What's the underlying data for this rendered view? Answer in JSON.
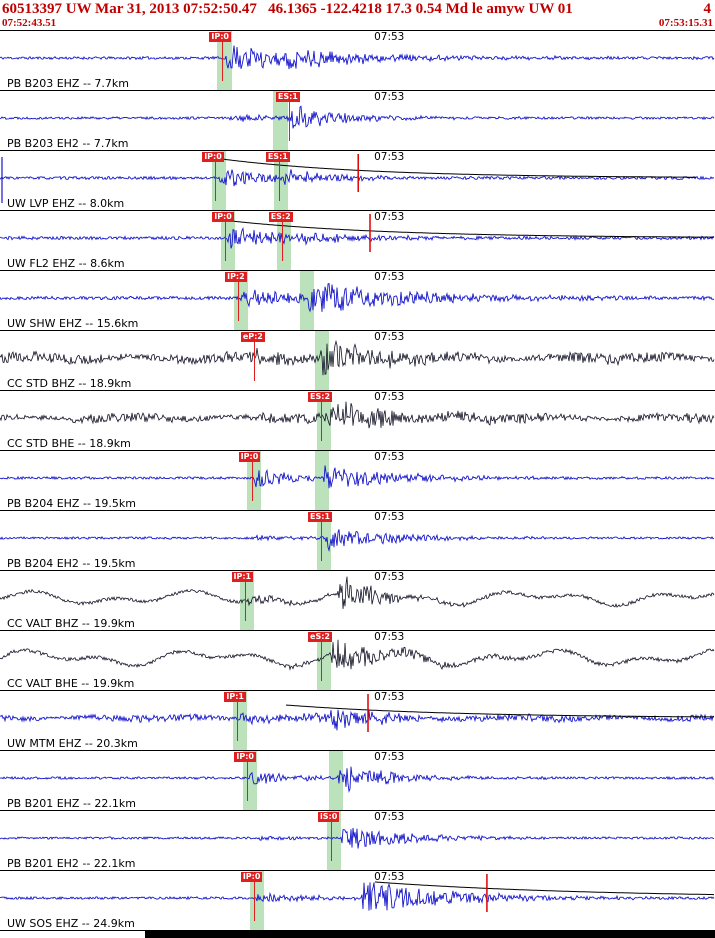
{
  "header": {
    "title": "60513397 UW Mar 31, 2013 07:52:50.47   46.1365 -122.4218 17.3 0.54 Md le amyw UW 01",
    "page": "4",
    "start_time": "07:52:43.51",
    "end_time": "07:53:15.31"
  },
  "time_tick": {
    "label": "07:53",
    "frac": 0.519
  },
  "colors": {
    "blue": "#1616cc",
    "dark": "#121226",
    "pick_red": "#e02020",
    "mark_red": "#dd0000",
    "band_green": "rgba(132,202,132,0.55)",
    "header_red": "#c00000",
    "coda_black": "#000000"
  },
  "traces": [
    {
      "label": "PB B203 EHZ -- 7.7km",
      "color": "blue",
      "picks": [
        {
          "label": "IP:0",
          "frac": 0.311
        }
      ],
      "bands": [
        {
          "frac": 0.304,
          "w": 15
        }
      ],
      "wave": {
        "seed": 11,
        "type": "hf",
        "noise": 1.3,
        "p_onset": 0.315,
        "p_amp": 14,
        "p_decay": 90,
        "s_onset": 0.4,
        "s_amp": 6,
        "s_decay": 120
      },
      "red_marks": [],
      "coda": null,
      "edge_spike": false
    },
    {
      "label": "PB B203 EH2 -- 7.7km",
      "color": "blue",
      "picks": [
        {
          "label": "ES:1",
          "frac": 0.404
        }
      ],
      "bands": [
        {
          "frac": 0.382,
          "w": 15
        }
      ],
      "wave": {
        "seed": 22,
        "type": "hf",
        "noise": 1.2,
        "p_onset": 0.32,
        "p_amp": 3.5,
        "p_decay": 70,
        "s_onset": 0.406,
        "s_amp": 12,
        "s_decay": 60
      },
      "red_marks": [],
      "coda": null,
      "edge_spike": false
    },
    {
      "label": "UW LVP EHZ -- 8.0km",
      "color": "blue",
      "picks": [
        {
          "label": "IP:0",
          "frac": 0.301
        },
        {
          "label": "ES:1",
          "frac": 0.39
        }
      ],
      "bands": [
        {
          "frac": 0.296,
          "w": 14
        },
        {
          "frac": 0.383,
          "w": 14
        }
      ],
      "wave": {
        "seed": 33,
        "type": "hf",
        "noise": 1.4,
        "p_onset": 0.305,
        "p_amp": 11,
        "p_decay": 45,
        "s_onset": 0.392,
        "s_amp": 7,
        "s_decay": 60
      },
      "red_marks": [
        0.501
      ],
      "coda": {
        "start": 0.31,
        "amp": 19,
        "tau": 150
      },
      "edge_spike": true
    },
    {
      "label": "UW FL2 EHZ -- 8.6km",
      "color": "blue",
      "picks": [
        {
          "label": "IP:0",
          "frac": 0.315
        },
        {
          "label": "ES:2",
          "frac": 0.394
        }
      ],
      "bands": [
        {
          "frac": 0.309,
          "w": 14
        },
        {
          "frac": 0.387,
          "w": 14
        }
      ],
      "wave": {
        "seed": 44,
        "type": "hf",
        "noise": 1.6,
        "p_onset": 0.318,
        "p_amp": 13,
        "p_decay": 45,
        "s_onset": 0.396,
        "s_amp": 6,
        "s_decay": 70
      },
      "red_marks": [
        0.5175
      ],
      "coda": {
        "start": 0.323,
        "amp": 17,
        "tau": 160
      },
      "edge_spike": false
    },
    {
      "label": "UW SHW EHZ -- 15.6km",
      "color": "blue",
      "picks": [
        {
          "label": "IP:2",
          "frac": 0.333
        }
      ],
      "bands": [
        {
          "frac": 0.327,
          "w": 14
        },
        {
          "frac": 0.419,
          "w": 14
        }
      ],
      "wave": {
        "seed": 55,
        "type": "hf",
        "noise": 1.6,
        "p_onset": 0.336,
        "p_amp": 9,
        "p_decay": 70,
        "s_onset": 0.428,
        "s_amp": 17,
        "s_decay": 110
      },
      "red_marks": [],
      "coda": null,
      "edge_spike": false
    },
    {
      "label": "CC STD BHZ -- 18.9km",
      "color": "dark",
      "picks": [
        {
          "label": "eP:2",
          "frac": 0.355
        }
      ],
      "bands": [
        {
          "frac": 0.441,
          "w": 14
        }
      ],
      "wave": {
        "seed": 66,
        "type": "mixed",
        "noise": 5.5,
        "p_onset": 0.357,
        "p_amp": 5,
        "p_decay": 60,
        "s_onset": 0.447,
        "s_amp": 18,
        "s_decay": 55
      },
      "red_marks": [],
      "coda": null,
      "edge_spike": false
    },
    {
      "label": "CC STD BHE -- 18.9km",
      "color": "dark",
      "picks": [
        {
          "label": "ES:2",
          "frac": 0.449
        }
      ],
      "bands": [
        {
          "frac": 0.443,
          "w": 14
        }
      ],
      "wave": {
        "seed": 77,
        "type": "mixed",
        "noise": 4.8,
        "p_onset": 0.36,
        "p_amp": 2,
        "p_decay": 80,
        "s_onset": 0.46,
        "s_amp": 15,
        "s_decay": 75
      },
      "red_marks": [],
      "coda": null,
      "edge_spike": false
    },
    {
      "label": "PB B204 EHZ -- 19.5km",
      "color": "blue",
      "picks": [
        {
          "label": "IP:0",
          "frac": 0.352
        }
      ],
      "bands": [
        {
          "frac": 0.346,
          "w": 14
        },
        {
          "frac": 0.441,
          "w": 14
        }
      ],
      "wave": {
        "seed": 88,
        "type": "hf",
        "noise": 1.2,
        "p_onset": 0.355,
        "p_amp": 11,
        "p_decay": 40,
        "s_onset": 0.452,
        "s_amp": 13,
        "s_decay": 75
      },
      "red_marks": [],
      "coda": null,
      "edge_spike": false
    },
    {
      "label": "PB B204 EH2 -- 19.5km",
      "color": "blue",
      "picks": [
        {
          "label": "ES:1",
          "frac": 0.449
        }
      ],
      "bands": [
        {
          "frac": 0.443,
          "w": 14
        }
      ],
      "wave": {
        "seed": 99,
        "type": "hf",
        "noise": 1.1,
        "p_onset": 0.357,
        "p_amp": 2.5,
        "p_decay": 60,
        "s_onset": 0.455,
        "s_amp": 12,
        "s_decay": 65
      },
      "red_marks": [],
      "coda": null,
      "edge_spike": false
    },
    {
      "label": "CC VALT BHZ -- 19.9km",
      "color": "dark",
      "picks": [
        {
          "label": "IP:1",
          "frac": 0.342
        }
      ],
      "bands": [
        {
          "frac": 0.336,
          "w": 14
        }
      ],
      "wave": {
        "seed": 110,
        "type": "lf",
        "noise": 7.5,
        "p_onset": 0.345,
        "p_amp": 5,
        "p_decay": 60,
        "s_onset": 0.474,
        "s_amp": 20,
        "s_decay": 40
      },
      "red_marks": [],
      "coda": null,
      "edge_spike": false
    },
    {
      "label": "CC VALT BHE -- 19.9km",
      "color": "dark",
      "picks": [
        {
          "label": "eS:2",
          "frac": 0.449
        }
      ],
      "bands": [
        {
          "frac": 0.443,
          "w": 14
        }
      ],
      "wave": {
        "seed": 121,
        "type": "lf",
        "noise": 8.5,
        "p_onset": 0.4,
        "p_amp": 2,
        "p_decay": 60,
        "s_onset": 0.462,
        "s_amp": 18,
        "s_decay": 55
      },
      "red_marks": [],
      "coda": null,
      "edge_spike": false
    },
    {
      "label": "UW MTM EHZ -- 20.3km",
      "color": "blue",
      "picks": [
        {
          "label": "IP:1",
          "frac": 0.332
        }
      ],
      "bands": [
        {
          "frac": 0.326,
          "w": 14
        }
      ],
      "wave": {
        "seed": 132,
        "type": "mixed",
        "noise": 3.5,
        "p_onset": 0.335,
        "p_amp": 5,
        "p_decay": 70,
        "s_onset": 0.46,
        "s_amp": 11,
        "s_decay": 60
      },
      "red_marks": [
        0.5147
      ],
      "coda": {
        "start": 0.4,
        "amp": 13,
        "tau": 170
      },
      "edge_spike": false
    },
    {
      "label": "PB B201 EHZ -- 22.1km",
      "color": "blue",
      "picks": [
        {
          "label": "IP:0",
          "frac": 0.346
        }
      ],
      "bands": [
        {
          "frac": 0.34,
          "w": 14
        },
        {
          "frac": 0.46,
          "w": 14
        }
      ],
      "wave": {
        "seed": 143,
        "type": "hf",
        "noise": 1.2,
        "p_onset": 0.349,
        "p_amp": 7,
        "p_decay": 55,
        "s_onset": 0.474,
        "s_amp": 16,
        "s_decay": 50
      },
      "red_marks": [],
      "coda": null,
      "edge_spike": false
    },
    {
      "label": "PB B201 EH2 -- 22.1km",
      "color": "blue",
      "picks": [
        {
          "label": "iS:0",
          "frac": 0.463
        }
      ],
      "bands": [
        {
          "frac": 0.457,
          "w": 14
        }
      ],
      "wave": {
        "seed": 154,
        "type": "hf",
        "noise": 1.1,
        "p_onset": 0.352,
        "p_amp": 2,
        "p_decay": 60,
        "s_onset": 0.478,
        "s_amp": 14,
        "s_decay": 60
      },
      "red_marks": [],
      "coda": null,
      "edge_spike": false
    },
    {
      "label": "UW SOS EHZ -- 24.9km",
      "color": "blue",
      "picks": [
        {
          "label": "IP:0",
          "frac": 0.355
        }
      ],
      "bands": [
        {
          "frac": 0.349,
          "w": 14
        }
      ],
      "wave": {
        "seed": 165,
        "type": "hf",
        "noise": 1.2,
        "p_onset": 0.358,
        "p_amp": 4,
        "p_decay": 70,
        "s_onset": 0.505,
        "s_amp": 18,
        "s_decay": 85
      },
      "red_marks": [
        0.681
      ],
      "coda": {
        "start": 0.525,
        "amp": 16,
        "tau": 220
      },
      "edge_spike": false
    }
  ]
}
